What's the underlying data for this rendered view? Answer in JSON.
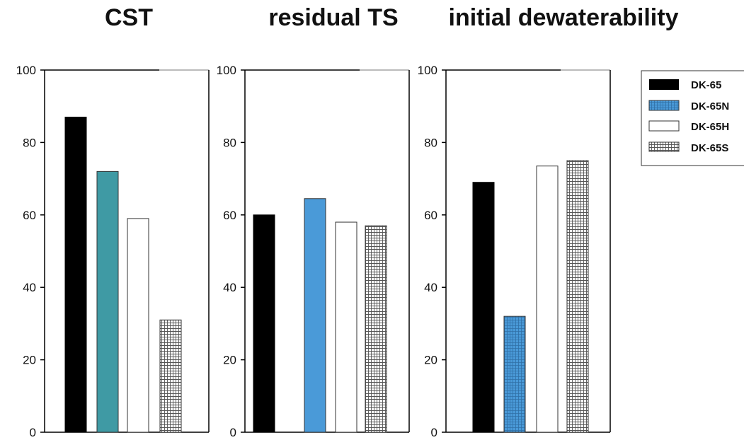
{
  "chart_data": [
    {
      "type": "bar",
      "title": "CST",
      "categories": [
        "DK-65",
        "DK-65N",
        "DK-65H",
        "DK-65S"
      ],
      "values": [
        87,
        72,
        59,
        31
      ],
      "ylim": [
        0,
        100
      ],
      "yticks": [
        "0",
        "20",
        "40",
        "60",
        "80",
        "100"
      ],
      "xlabel": "",
      "ylabel": "",
      "grid": false
    },
    {
      "type": "bar",
      "title": "residual TS",
      "categories": [
        "DK-65",
        "DK-65N",
        "DK-65H",
        "DK-65S"
      ],
      "values": [
        60,
        64.5,
        58,
        57
      ],
      "ylim": [
        0,
        100
      ],
      "yticks": [
        "0",
        "20",
        "40",
        "60",
        "80",
        "100"
      ],
      "xlabel": "",
      "ylabel": "",
      "grid": false
    },
    {
      "type": "bar",
      "title": "initial dewaterability",
      "categories": [
        "DK-65",
        "DK-65N",
        "DK-65H",
        "DK-65S"
      ],
      "values": [
        69,
        32,
        73.5,
        75
      ],
      "ylim": [
        0,
        100
      ],
      "yticks": [
        "0",
        "20",
        "40",
        "60",
        "80",
        "100"
      ],
      "xlabel": "",
      "ylabel": "",
      "grid": false
    }
  ],
  "legend": {
    "placement": "top-right",
    "items": [
      {
        "label": "DK-65",
        "fill": "black"
      },
      {
        "label": "DK-65N",
        "fill": "blue-crosshatch"
      },
      {
        "label": "DK-65H",
        "fill": "white"
      },
      {
        "label": "DK-65S",
        "fill": "grid-pattern"
      }
    ]
  },
  "colors": {
    "black": "#000000",
    "teal": "#3f9aa4",
    "blue": "#4a9ad8",
    "white": "#ffffff",
    "axis": "#000000",
    "frame_faint": "#bbbbbb"
  },
  "bar_styles": [
    [
      "black",
      "teal",
      "white",
      "grid"
    ],
    [
      "black",
      "blue",
      "white",
      "grid"
    ],
    [
      "black",
      "bluehatch",
      "white",
      "grid"
    ]
  ]
}
